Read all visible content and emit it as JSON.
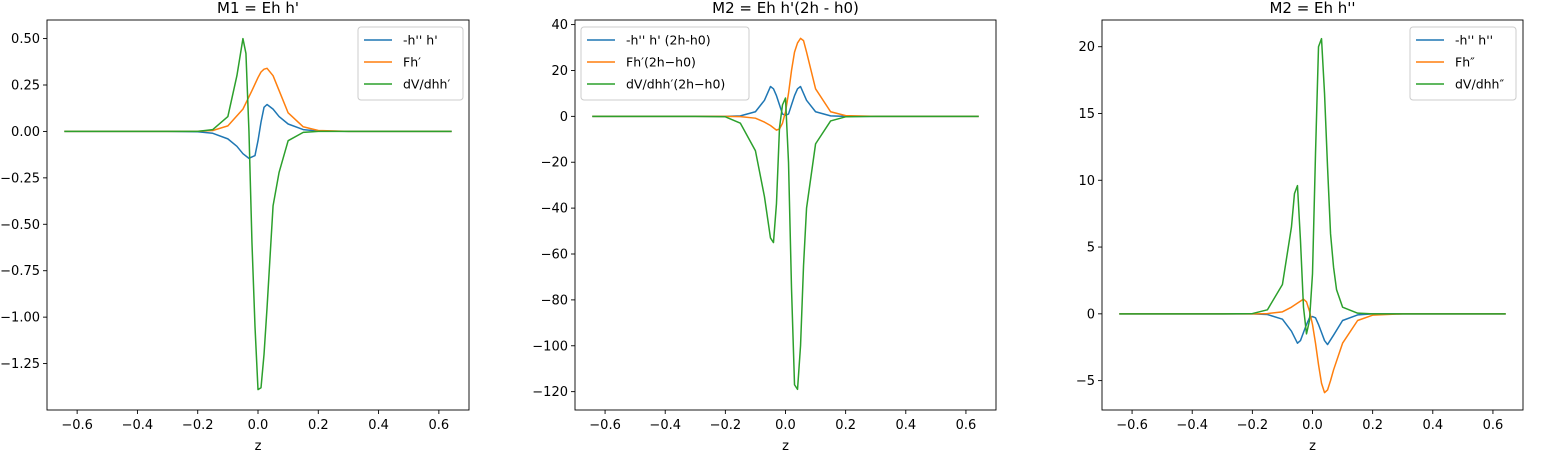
{
  "figure": {
    "background": "#ffffff"
  },
  "chart_data": [
    {
      "type": "line",
      "title": "M1 = Eh h'",
      "xlabel": "z",
      "ylabel": "",
      "xlim": [
        -0.7,
        0.7
      ],
      "ylim": [
        -1.5,
        0.6
      ],
      "xticks": [
        -0.6,
        -0.4,
        -0.2,
        0.0,
        0.2,
        0.4,
        0.6
      ],
      "xtick_labels": [
        "−0.6",
        "−0.4",
        "−0.2",
        "0.0",
        "0.2",
        "0.4",
        "0.6"
      ],
      "yticks": [
        0.5,
        0.25,
        0.0,
        -0.25,
        -0.5,
        -0.75,
        -1.0,
        -1.25
      ],
      "ytick_labels": [
        "0.50",
        "0.25",
        "0.00",
        "−0.25",
        "−0.50",
        "−0.75",
        "−1.00",
        "−1.25"
      ],
      "legend": "top-right",
      "grid": false,
      "series": [
        {
          "name": "-h'' h'",
          "color": "#1f77b4",
          "x": [
            -0.64,
            -0.3,
            -0.2,
            -0.15,
            -0.1,
            -0.07,
            -0.05,
            -0.03,
            -0.01,
            0.0,
            0.01,
            0.02,
            0.03,
            0.05,
            0.07,
            0.1,
            0.15,
            0.2,
            0.3,
            0.64
          ],
          "y": [
            0.0,
            0.0,
            -0.002,
            -0.01,
            -0.04,
            -0.08,
            -0.12,
            -0.145,
            -0.13,
            -0.05,
            0.05,
            0.13,
            0.145,
            0.12,
            0.08,
            0.04,
            0.01,
            0.002,
            0.0,
            0.0
          ]
        },
        {
          "name": "Fh′",
          "color": "#ff7f0e",
          "x": [
            -0.64,
            -0.3,
            -0.2,
            -0.15,
            -0.1,
            -0.05,
            -0.02,
            0.0,
            0.01,
            0.02,
            0.03,
            0.05,
            0.07,
            0.1,
            0.15,
            0.2,
            0.3,
            0.64
          ],
          "y": [
            0.0,
            0.0,
            0.001,
            0.005,
            0.03,
            0.12,
            0.22,
            0.29,
            0.32,
            0.335,
            0.34,
            0.3,
            0.22,
            0.1,
            0.025,
            0.005,
            0.0,
            0.0
          ]
        },
        {
          "name": "dV/dhh′",
          "color": "#2ca02c",
          "x": [
            -0.64,
            -0.3,
            -0.2,
            -0.15,
            -0.1,
            -0.07,
            -0.05,
            -0.04,
            -0.03,
            -0.02,
            -0.01,
            0.0,
            0.01,
            0.02,
            0.03,
            0.05,
            0.07,
            0.1,
            0.15,
            0.2,
            0.3,
            0.64
          ],
          "y": [
            0.0,
            0.0,
            0.0,
            0.01,
            0.08,
            0.3,
            0.5,
            0.42,
            0.0,
            -0.6,
            -1.05,
            -1.39,
            -1.38,
            -1.2,
            -0.95,
            -0.4,
            -0.22,
            -0.05,
            -0.005,
            0.0,
            0.0,
            0.0
          ]
        }
      ]
    },
    {
      "type": "line",
      "title": "M2 = Eh h'(2h - h0)",
      "xlabel": "z",
      "ylabel": "",
      "xlim": [
        -0.7,
        0.7
      ],
      "ylim": [
        -128,
        42
      ],
      "xticks": [
        -0.6,
        -0.4,
        -0.2,
        0.0,
        0.2,
        0.4,
        0.6
      ],
      "xtick_labels": [
        "−0.6",
        "−0.4",
        "−0.2",
        "0.0",
        "0.2",
        "0.4",
        "0.6"
      ],
      "yticks": [
        40,
        20,
        0,
        -20,
        -40,
        -60,
        -80,
        -100,
        -120
      ],
      "ytick_labels": [
        "40",
        "20",
        "0",
        "−20",
        "−40",
        "−60",
        "−80",
        "−100",
        "−120"
      ],
      "legend": "top-left",
      "grid": false,
      "series": [
        {
          "name": "-h'' h' (2h-h0)",
          "color": "#1f77b4",
          "x": [
            -0.64,
            -0.3,
            -0.2,
            -0.15,
            -0.1,
            -0.07,
            -0.05,
            -0.04,
            -0.03,
            -0.02,
            -0.01,
            0.0,
            0.01,
            0.02,
            0.03,
            0.04,
            0.05,
            0.07,
            0.1,
            0.15,
            0.2,
            0.3,
            0.64
          ],
          "y": [
            0.0,
            0.0,
            0.0,
            0.2,
            2.0,
            7.0,
            13.0,
            12.0,
            9.0,
            5.0,
            1.0,
            0.5,
            1.0,
            5.0,
            9.0,
            12.0,
            13.0,
            7.0,
            2.0,
            0.2,
            0.0,
            0.0,
            0.0
          ]
        },
        {
          "name": "Fh′(2h−h0)",
          "color": "#ff7f0e",
          "x": [
            -0.64,
            -0.3,
            -0.2,
            -0.15,
            -0.1,
            -0.07,
            -0.05,
            -0.03,
            -0.02,
            -0.01,
            0.0,
            0.01,
            0.02,
            0.03,
            0.04,
            0.05,
            0.06,
            0.07,
            0.1,
            0.15,
            0.2,
            0.3,
            0.64
          ],
          "y": [
            0.0,
            0.0,
            0.0,
            -0.1,
            -0.8,
            -2.5,
            -4.0,
            -6.0,
            -5.5,
            -3.0,
            2.0,
            10.0,
            20.0,
            28.0,
            32.0,
            34.0,
            33.0,
            28.0,
            12.0,
            2.0,
            0.3,
            0.0,
            0.0
          ]
        },
        {
          "name": "dV/dhh′(2h−h0)",
          "color": "#2ca02c",
          "x": [
            -0.64,
            -0.3,
            -0.2,
            -0.15,
            -0.1,
            -0.07,
            -0.05,
            -0.04,
            -0.03,
            -0.02,
            -0.01,
            0.0,
            0.01,
            0.02,
            0.03,
            0.04,
            0.05,
            0.06,
            0.07,
            0.1,
            0.15,
            0.2,
            0.3,
            0.64
          ],
          "y": [
            0.0,
            0.0,
            -0.2,
            -3.0,
            -15.0,
            -35.0,
            -53.0,
            -55.0,
            -38.0,
            -5.0,
            5.0,
            8.0,
            -20.0,
            -75.0,
            -117.0,
            -119.0,
            -100.0,
            -65.0,
            -40.0,
            -12.0,
            -2.0,
            -0.2,
            0.0,
            0.0
          ]
        }
      ]
    },
    {
      "type": "line",
      "title": "M2 = Eh h''",
      "xlabel": "z",
      "ylabel": "",
      "xlim": [
        -0.7,
        0.7
      ],
      "ylim": [
        -7.2,
        22.0
      ],
      "xticks": [
        -0.6,
        -0.4,
        -0.2,
        0.0,
        0.2,
        0.4,
        0.6
      ],
      "xtick_labels": [
        "−0.6",
        "−0.4",
        "−0.2",
        "0.0",
        "0.2",
        "0.4",
        "0.6"
      ],
      "yticks": [
        20,
        15,
        10,
        5,
        0,
        -5
      ],
      "ytick_labels": [
        "20",
        "15",
        "10",
        "5",
        "0",
        "−5"
      ],
      "legend": "top-right",
      "grid": false,
      "series": [
        {
          "name": "-h'' h''",
          "color": "#1f77b4",
          "x": [
            -0.64,
            -0.3,
            -0.2,
            -0.15,
            -0.1,
            -0.07,
            -0.05,
            -0.04,
            -0.03,
            -0.02,
            -0.01,
            0.0,
            0.01,
            0.02,
            0.03,
            0.04,
            0.05,
            0.07,
            0.1,
            0.15,
            0.2,
            0.3,
            0.64
          ],
          "y": [
            0.0,
            0.0,
            0.0,
            -0.05,
            -0.4,
            -1.3,
            -2.2,
            -2.0,
            -1.4,
            -0.8,
            -0.3,
            -0.2,
            -0.3,
            -0.8,
            -1.4,
            -2.0,
            -2.3,
            -1.6,
            -0.5,
            -0.08,
            0.0,
            0.0,
            0.0
          ]
        },
        {
          "name": "Fh″",
          "color": "#ff7f0e",
          "x": [
            -0.64,
            -0.3,
            -0.2,
            -0.15,
            -0.1,
            -0.07,
            -0.05,
            -0.03,
            -0.02,
            -0.01,
            0.0,
            0.01,
            0.02,
            0.03,
            0.04,
            0.05,
            0.06,
            0.07,
            0.1,
            0.15,
            0.2,
            0.3,
            0.64
          ],
          "y": [
            0.0,
            0.0,
            0.0,
            0.02,
            0.15,
            0.5,
            0.8,
            1.1,
            0.9,
            0.2,
            -0.8,
            -2.2,
            -3.8,
            -5.2,
            -5.9,
            -5.7,
            -5.0,
            -4.2,
            -2.2,
            -0.5,
            -0.1,
            0.0,
            0.0
          ]
        },
        {
          "name": "dV/dhh″",
          "color": "#2ca02c",
          "x": [
            -0.64,
            -0.3,
            -0.2,
            -0.15,
            -0.1,
            -0.07,
            -0.06,
            -0.05,
            -0.04,
            -0.03,
            -0.02,
            -0.01,
            0.0,
            0.01,
            0.02,
            0.03,
            0.04,
            0.05,
            0.06,
            0.07,
            0.08,
            0.1,
            0.15,
            0.2,
            0.3,
            0.64
          ],
          "y": [
            0.0,
            0.0,
            0.02,
            0.3,
            2.2,
            6.5,
            9.0,
            9.6,
            5.5,
            0.5,
            -1.5,
            -0.5,
            3.0,
            12.0,
            20.0,
            20.6,
            16.5,
            11.0,
            6.0,
            3.5,
            1.8,
            0.5,
            0.05,
            0.0,
            0.0,
            0.0
          ]
        }
      ]
    }
  ]
}
